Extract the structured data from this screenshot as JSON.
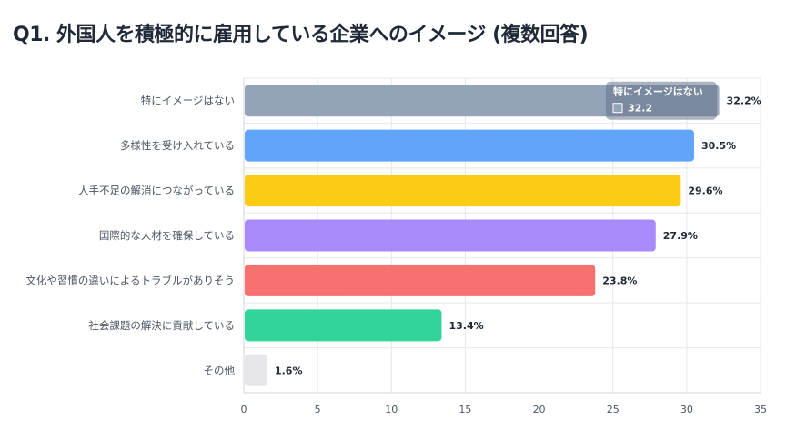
{
  "title": "Q1. 外国人を積極的に雇用している企業へのイメージ (複数回答)",
  "tooltip": {
    "label": "特にイメージはない",
    "value": "32.2"
  },
  "chart_data": {
    "type": "bar",
    "orientation": "horizontal",
    "title": "Q1. 外国人を積極的に雇用している企業へのイメージ (複数回答)",
    "categories": [
      "特にイメージはない",
      "多様性を受け入れている",
      "人手不足の解消につながっている",
      "国際的な人材を確保している",
      "文化や習慣の違いによるトラブルがありそう",
      "社会課題の解決に貢献している",
      "その他"
    ],
    "values": [
      32.2,
      30.5,
      29.6,
      27.9,
      23.8,
      13.4,
      1.6
    ],
    "value_labels": [
      "32.2%",
      "30.5%",
      "29.6%",
      "27.9%",
      "23.8%",
      "13.4%",
      "1.6%"
    ],
    "colors": [
      "#94a3b8",
      "#60a5fa",
      "#facc15",
      "#a78bfa",
      "#f87171",
      "#34d399",
      "#e5e7eb"
    ],
    "xlim": [
      0,
      35
    ],
    "xticks": [
      0,
      5,
      10,
      15,
      20,
      25,
      30,
      35
    ],
    "grid": true
  }
}
